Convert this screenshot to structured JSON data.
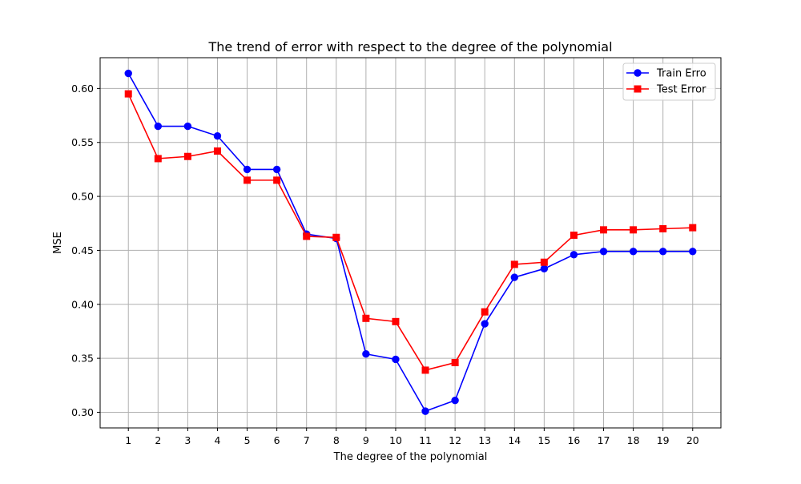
{
  "chart_data": {
    "type": "line",
    "title": "The trend of error with respect to the degree of the polynomial",
    "xlabel": "The degree of the polynomial",
    "ylabel": "MSE",
    "x": [
      1,
      2,
      3,
      4,
      5,
      6,
      7,
      8,
      9,
      10,
      11,
      12,
      13,
      14,
      15,
      16,
      17,
      18,
      19,
      20
    ],
    "xticks": [
      "1",
      "2",
      "3",
      "4",
      "5",
      "6",
      "7",
      "8",
      "9",
      "10",
      "11",
      "12",
      "13",
      "14",
      "15",
      "16",
      "17",
      "18",
      "19",
      "20"
    ],
    "yticks": [
      "0.30",
      "0.35",
      "0.40",
      "0.45",
      "0.50",
      "0.55",
      "0.60"
    ],
    "ytick_values": [
      0.3,
      0.35,
      0.4,
      0.45,
      0.5,
      0.55,
      0.6
    ],
    "xlim": [
      0.05,
      20.95
    ],
    "ylim": [
      0.2855,
      0.6285
    ],
    "grid": true,
    "legend_position": "top-right",
    "series": [
      {
        "name": "Train Erro",
        "color": "#0000ff",
        "marker": "circle",
        "values": [
          0.614,
          0.565,
          0.565,
          0.556,
          0.525,
          0.525,
          0.465,
          0.461,
          0.354,
          0.349,
          0.301,
          0.311,
          0.382,
          0.425,
          0.433,
          0.446,
          0.449,
          0.449,
          0.449,
          0.449
        ]
      },
      {
        "name": "Test Error",
        "color": "#ff0000",
        "marker": "square",
        "values": [
          0.595,
          0.535,
          0.537,
          0.542,
          0.515,
          0.515,
          0.463,
          0.462,
          0.387,
          0.384,
          0.339,
          0.346,
          0.393,
          0.437,
          0.439,
          0.464,
          0.469,
          0.469,
          0.47,
          0.471
        ]
      }
    ]
  }
}
